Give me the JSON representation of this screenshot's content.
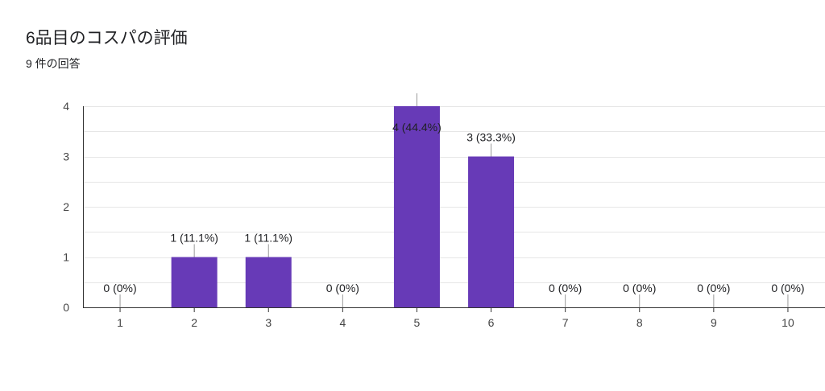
{
  "header": {
    "title": "6品目のコスパの評価",
    "subtitle": "9 件の回答"
  },
  "colors": {
    "bar": "#673ab7",
    "grid": "#e6e6e6",
    "axis": "#333333",
    "leader": "#999999"
  },
  "chart_data": {
    "type": "bar",
    "title": "6品目のコスパの評価",
    "subtitle": "9 件の回答",
    "categories": [
      "1",
      "2",
      "3",
      "4",
      "5",
      "6",
      "7",
      "8",
      "9",
      "10"
    ],
    "values": [
      0,
      1,
      1,
      0,
      4,
      3,
      0,
      0,
      0,
      0
    ],
    "data_labels": [
      "0 (0%)",
      "1 (11.1%)",
      "1 (11.1%)",
      "0 (0%)",
      "4 (44.4%)",
      "3 (33.3%)",
      "0 (0%)",
      "0 (0%)",
      "0 (0%)",
      "0 (0%)"
    ],
    "y_ticks": [
      "0",
      "1",
      "2",
      "3",
      "4"
    ],
    "ylim": [
      0,
      4
    ],
    "grid": true,
    "legend": "none"
  }
}
